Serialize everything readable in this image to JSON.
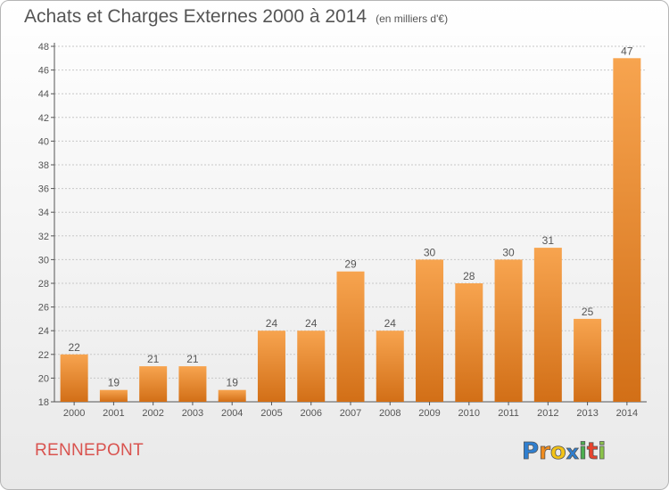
{
  "header": {
    "title": "Achats et Charges Externes 2000 à 2014",
    "subtitle": "(en milliers d'€)"
  },
  "footer": {
    "town": "RENNEPONT",
    "logo_text": "Proxiti"
  },
  "colors": {
    "bar_light": "#f7a44f",
    "bar_dark": "#d26f17",
    "axis": "#555555",
    "grid": "#c8c8c8",
    "town": "#d9534f"
  },
  "chart_data": {
    "type": "bar",
    "categories": [
      "2000",
      "2001",
      "2002",
      "2003",
      "2004",
      "2005",
      "2006",
      "2007",
      "2008",
      "2009",
      "2010",
      "2011",
      "2012",
      "2013",
      "2014"
    ],
    "values": [
      22,
      19,
      21,
      21,
      19,
      24,
      24,
      29,
      24,
      30,
      28,
      30,
      31,
      25,
      47
    ],
    "ylim": [
      18,
      48
    ],
    "yticks": [
      18,
      20,
      22,
      24,
      26,
      28,
      30,
      32,
      34,
      36,
      38,
      40,
      42,
      44,
      46,
      48
    ],
    "grid": true,
    "data_labels": true
  }
}
